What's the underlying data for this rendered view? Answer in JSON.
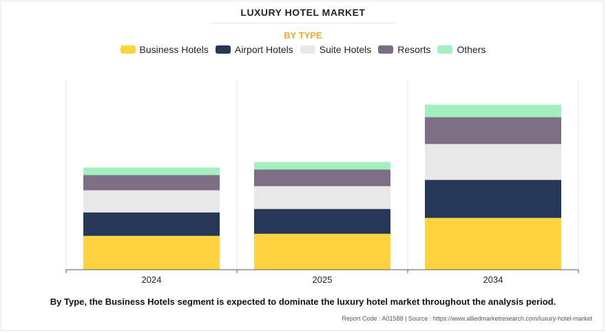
{
  "title": "LUXURY HOTEL MARKET",
  "subtitle": "BY TYPE",
  "caption": "By Type, the Business Hotels segment is expected to dominate the luxury hotel market throughout the analysis period.",
  "source": "Report Code : A01588  |  Source : https://www.alliedmarketresearch.com/luxury-hotel-market",
  "chart_data": {
    "type": "bar",
    "stacked": true,
    "categories": [
      "2024",
      "2025",
      "2034"
    ],
    "series": [
      {
        "name": "Business Hotels",
        "color": "#ffd23f",
        "values": [
          49,
          52,
          75
        ]
      },
      {
        "name": "Airport Hotels",
        "color": "#253858",
        "values": [
          34,
          36,
          55
        ]
      },
      {
        "name": "Suite Hotels",
        "color": "#e8e8e8",
        "values": [
          32,
          33,
          52
        ]
      },
      {
        "name": "Resorts",
        "color": "#7d6e85",
        "values": [
          22,
          24,
          39
        ]
      },
      {
        "name": "Others",
        "color": "#a3efc0",
        "values": [
          11,
          11,
          18
        ]
      }
    ],
    "ylim": [
      0,
      275
    ],
    "legend_position": "top-center",
    "grid": false
  }
}
